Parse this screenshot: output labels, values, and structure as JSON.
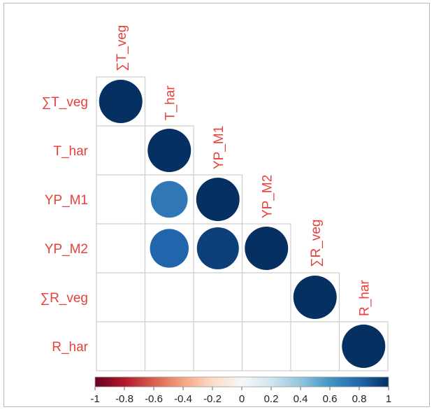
{
  "chart_data": {
    "type": "heatmap",
    "variables": [
      "∑T_veg",
      "T_har",
      "YP_M1",
      "YP_M2",
      "∑R_veg",
      "R_har"
    ],
    "cells": [
      {
        "row": "∑T_veg",
        "col": "∑T_veg",
        "value": 1.0
      },
      {
        "row": "T_har",
        "col": "T_har",
        "value": 1.0
      },
      {
        "row": "YP_M1",
        "col": "T_har",
        "value": 0.72
      },
      {
        "row": "YP_M1",
        "col": "YP_M1",
        "value": 1.0
      },
      {
        "row": "YP_M2",
        "col": "T_har",
        "value": 0.8
      },
      {
        "row": "YP_M2",
        "col": "YP_M1",
        "value": 0.94
      },
      {
        "row": "YP_M2",
        "col": "YP_M2",
        "value": 1.0
      },
      {
        "row": "∑R_veg",
        "col": "∑R_veg",
        "value": 1.0
      },
      {
        "row": "R_har",
        "col": "R_har",
        "value": 1.0
      }
    ],
    "layout": "lower-triangle",
    "marker": "circle",
    "colorbar": {
      "range": [
        -1,
        1
      ],
      "ticks": [
        "-1",
        "-0.8",
        "-0.6",
        "-0.4",
        "-0.2",
        "0",
        "0.2",
        "0.4",
        "0.6",
        "0.8",
        "1"
      ],
      "colors": [
        "#67001f",
        "#b2182b",
        "#d6604d",
        "#f4a582",
        "#fddbc7",
        "#f7f7f7",
        "#d1e5f0",
        "#92c5de",
        "#4393c3",
        "#2166ac",
        "#053061"
      ],
      "placement": "bottom"
    },
    "label_color": "#e8403a"
  }
}
